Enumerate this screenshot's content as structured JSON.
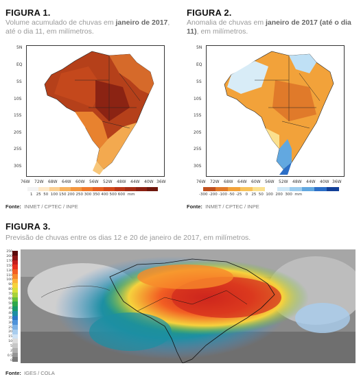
{
  "fig1": {
    "title": "FIGURA 1.",
    "subtitle_pre": "Volume acumulado de chuvas em ",
    "subtitle_bold": "janeiro de 2017",
    "subtitle_post": ", até o dia 11, em milímetros.",
    "lat_ticks": [
      "5N",
      "EQ",
      "5S",
      "10S",
      "15S",
      "20S",
      "25S",
      "30S"
    ],
    "lon_ticks": [
      "76W",
      "72W",
      "68W",
      "64W",
      "60W",
      "56W",
      "52W",
      "48W",
      "44W",
      "40W",
      "36W"
    ],
    "scale_labels": [
      "1",
      "25",
      "50",
      "100",
      "150",
      "200",
      "250",
      "300",
      "350",
      "400",
      "500",
      "600"
    ],
    "scale_unit": "mm",
    "source_label": "Fonte:",
    "source_text": "INMET / CPTEC / INPE"
  },
  "fig2": {
    "title": "FIGURA 2.",
    "subtitle_pre": "Anomalia de chuvas em ",
    "subtitle_bold": "janeiro de 2017 (até o dia 11)",
    "subtitle_post": ", em milímetros.",
    "lat_ticks": [
      "5N",
      "EQ",
      "5S",
      "10S",
      "15S",
      "20S",
      "25S",
      "30S"
    ],
    "lon_ticks": [
      "76W",
      "72W",
      "68W",
      "64W",
      "60W",
      "56W",
      "52W",
      "48W",
      "44W",
      "40W",
      "36W"
    ],
    "scale_labels": [
      "-300",
      "-200",
      "-100",
      "-50",
      "-25",
      "0",
      "25",
      "50",
      "100",
      "200",
      "300"
    ],
    "scale_unit": "mm",
    "source_label": "Fonte:",
    "source_text": "INMET / CPTEC / INPE"
  },
  "fig3": {
    "title": "FIGURA 3.",
    "subtitle": "Previsão de chuvas entre os dias 12 e 20 de janeiro de 2017, em milímetros.",
    "scale_labels": [
      "250",
      "200",
      "170",
      "150",
      "130",
      "110",
      "100",
      "90",
      "80",
      "70",
      "60",
      "50",
      "45",
      "40",
      "35",
      "30",
      "25",
      "20",
      "15",
      "10",
      "5",
      "2",
      "0.5",
      "0"
    ],
    "source_label": "Fonte:",
    "source_text": "IGES / COLA"
  },
  "colors": {
    "rain_scale": [
      "#f3f3f3",
      "#fde8c8",
      "#fbd093",
      "#f7b25e",
      "#f39740",
      "#ef7a2c",
      "#e45f22",
      "#d24a1b",
      "#bb3716",
      "#a42c14",
      "#8b2011",
      "#6e170c"
    ],
    "anom_scale": [
      "#c0501e",
      "#e07a2a",
      "#f2a23a",
      "#f7c25a",
      "#fbe08e",
      "#ffffff",
      "#cfe8f7",
      "#9ccdef",
      "#62a8e0",
      "#2c6fc7",
      "#123f97"
    ],
    "fcst_scale": [
      "#5a0a0a",
      "#8c1515",
      "#c41e1e",
      "#e8301d",
      "#f25e23",
      "#f7892b",
      "#fbb13a",
      "#f6d23d",
      "#d8e03a",
      "#a8d23a",
      "#66c03c",
      "#2fa84a",
      "#1a9a6b",
      "#1d8fa3",
      "#2a79c8",
      "#4f93da",
      "#7fb3e6",
      "#a9cdee",
      "#cfe3f5",
      "#dddddd",
      "#c7c7c7",
      "#b0b0b0",
      "#959595",
      "#7a7a7a"
    ]
  }
}
